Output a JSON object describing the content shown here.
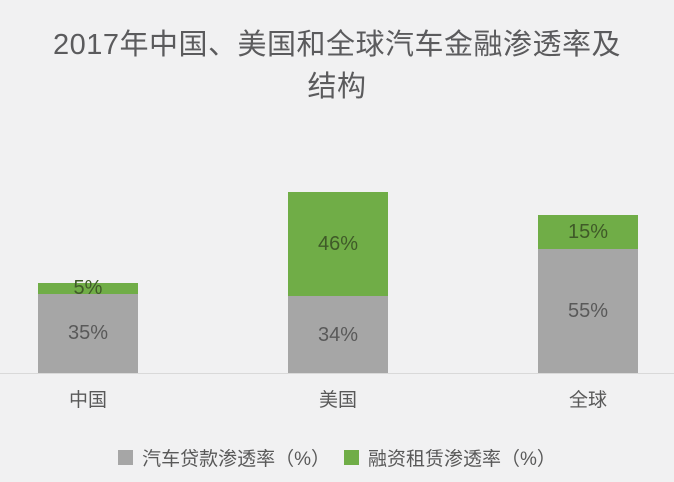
{
  "title": "2017年中国、美国和全球汽车金融渗透率及结构",
  "title_lines": [
    "2017年中国、美国和全球汽车金融渗透率及",
    "结构"
  ],
  "chart_data": {
    "type": "bar",
    "stacked": true,
    "orientation": "vertical",
    "title": "2017年中国、美国和全球汽车金融渗透率及结构",
    "categories": [
      "中国",
      "美国",
      "全球"
    ],
    "series": [
      {
        "name": "汽车贷款渗透率（%）",
        "color": "#a6a6a6",
        "label_color": "#595959",
        "values": [
          35,
          34,
          55
        ]
      },
      {
        "name": "融资租赁渗透率（%）",
        "color": "#70ad47",
        "label_color": "#3f5a28",
        "values": [
          5,
          46,
          15
        ]
      }
    ],
    "data_labels": [
      [
        "35%",
        "34%",
        "55%"
      ],
      [
        "5%",
        "46%",
        "15%"
      ]
    ],
    "value_suffix": "%",
    "ylim": [
      0,
      80
    ],
    "gridlines": false,
    "legend_position": "bottom",
    "axis_line_color": "#d9d9d9",
    "background_color": "#f1f1f2",
    "text_color": "#595959"
  }
}
